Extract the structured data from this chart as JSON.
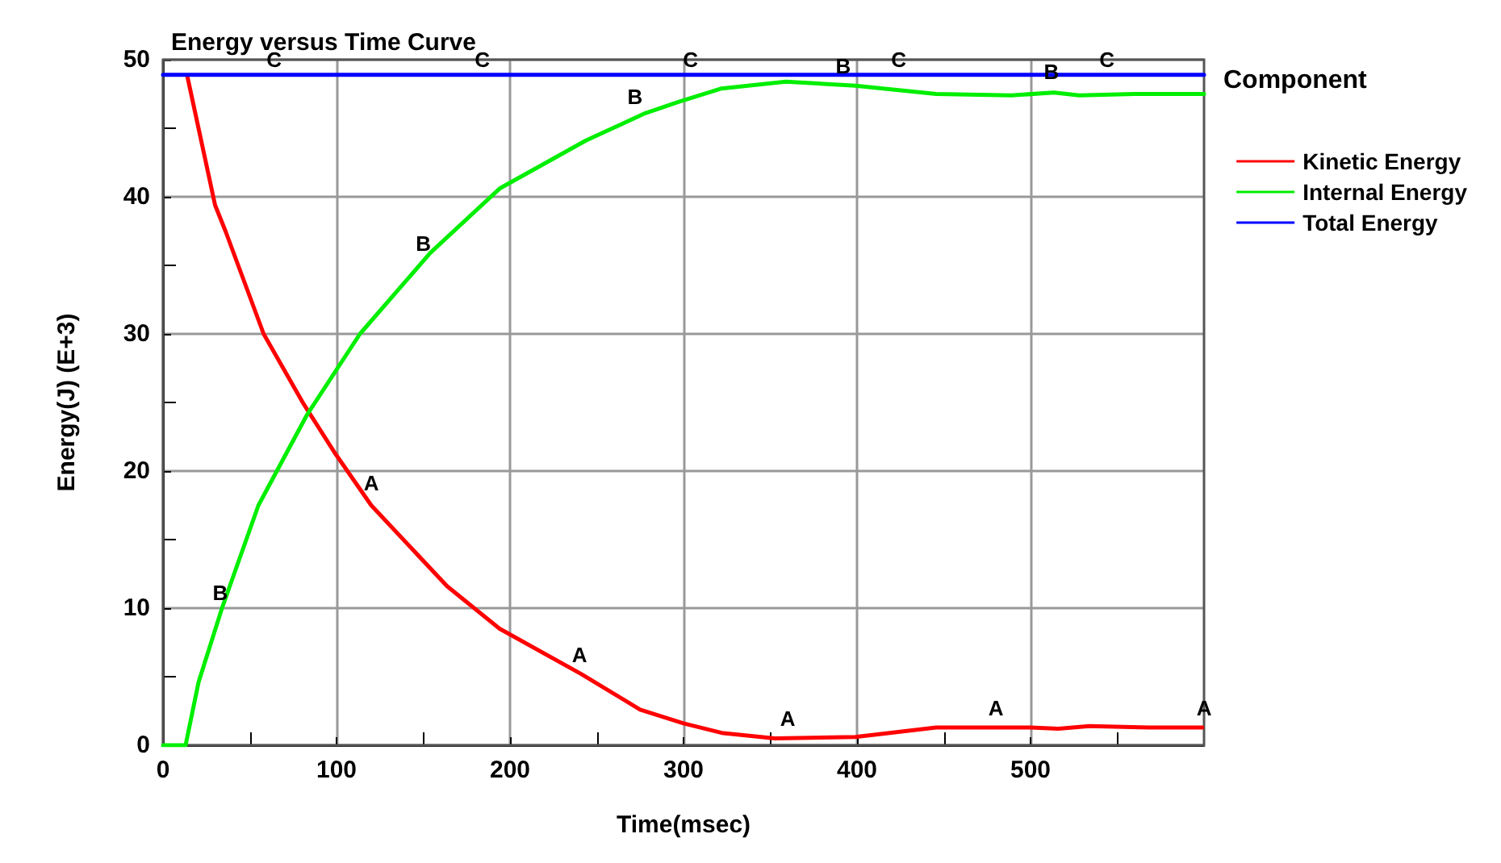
{
  "chart_data": {
    "type": "line",
    "title": "Energy versus Time Curve",
    "xlabel": "Time(msec)",
    "ylabel": "Energy(J) (E+3)",
    "legend_title": "Component",
    "legend": "right",
    "grid": true,
    "marker": "none",
    "line_style": "solid",
    "xlim": [
      0,
      600
    ],
    "xticks": [
      0,
      100,
      200,
      300,
      400,
      500
    ],
    "ylim": [
      0,
      50
    ],
    "yticks": [
      0,
      10,
      20,
      30,
      40,
      50
    ],
    "series": [
      {
        "name": "Kinetic Energy",
        "color": "#ff0000",
        "x": [
          14,
          30,
          36,
          58,
          81,
          98.6,
          120,
          163.7,
          194,
          241,
          275,
          300,
          322,
          352.6,
          399,
          445.6,
          500,
          516,
          534,
          568,
          599
        ],
        "values": [
          48.8,
          39.4,
          37.5,
          30,
          24.9,
          21.4,
          17.5,
          11.6,
          8.5,
          5.2,
          2.6,
          1.6,
          0.9,
          0.5,
          0.6,
          1.3,
          1.3,
          1.2,
          1.4,
          1.3,
          1.3
        ]
      },
      {
        "name": "Internal Energy",
        "color": "#00ee00",
        "x": [
          0,
          13,
          20.5,
          34,
          55,
          83,
          113.5,
          154,
          194,
          243.7,
          278,
          296.7,
          322,
          359,
          399,
          445.6,
          489,
          513.5,
          528,
          560,
          600
        ],
        "values": [
          0,
          0,
          4.6,
          10,
          17.5,
          24.1,
          30,
          35.9,
          40.6,
          44.1,
          46.1,
          46.9,
          47.9,
          48.4,
          48.1,
          47.5,
          47.4,
          47.6,
          47.4,
          47.5,
          47.5
        ]
      },
      {
        "name": "Total Energy",
        "color": "#0000ff",
        "x": [
          0,
          600
        ],
        "values": [
          48.9,
          48.9
        ]
      }
    ],
    "annotations": [
      {
        "text": "A",
        "x": 120,
        "y": 18
      },
      {
        "text": "A",
        "x": 240,
        "y": 5.5
      },
      {
        "text": "A",
        "x": 360,
        "y": 0.8
      },
      {
        "text": "A",
        "x": 480,
        "y": 1.6
      },
      {
        "text": "A",
        "x": 600,
        "y": 1.6
      },
      {
        "text": "B",
        "x": 33,
        "y": 10
      },
      {
        "text": "B",
        "x": 150,
        "y": 35.5
      },
      {
        "text": "B",
        "x": 272,
        "y": 46.2
      },
      {
        "text": "B",
        "x": 392,
        "y": 48.4
      },
      {
        "text": "B",
        "x": 512,
        "y": 48
      },
      {
        "text": "C",
        "x": 64,
        "y": 48.9
      },
      {
        "text": "C",
        "x": 184,
        "y": 48.9
      },
      {
        "text": "C",
        "x": 304,
        "y": 48.9
      },
      {
        "text": "C",
        "x": 424,
        "y": 48.9
      },
      {
        "text": "C",
        "x": 544,
        "y": 48.9
      }
    ]
  }
}
